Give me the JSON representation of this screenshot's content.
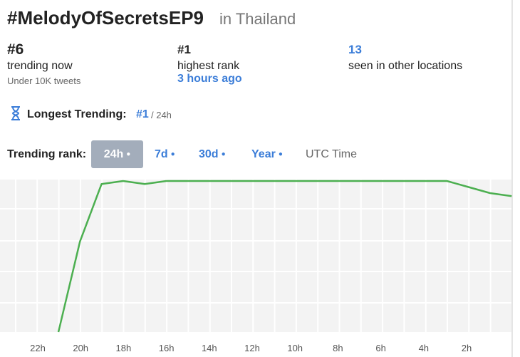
{
  "header": {
    "title": "#MelodyOfSecretsEP9",
    "location": "in Thailand"
  },
  "stats": [
    {
      "value": "#6",
      "label": "trending now",
      "note": "Under 10K tweets"
    },
    {
      "value": "#1",
      "label": "highest rank",
      "note": "3 hours ago"
    },
    {
      "value": "13",
      "label": "seen in other locations"
    }
  ],
  "longest": {
    "label": "Longest Trending:",
    "rank": "#1",
    "period": "/ 24h"
  },
  "tabs": {
    "label": "Trending rank:",
    "options": [
      "24h",
      "7d",
      "30d",
      "Year"
    ],
    "timezone": "UTC Time"
  },
  "chart_data": {
    "type": "line",
    "color": "#4caf50",
    "y_reversed": true,
    "ylim": [
      1,
      51
    ],
    "values": [
      51,
      21,
      2,
      1,
      2,
      1,
      1,
      1,
      1,
      1,
      1,
      1,
      1,
      1,
      1,
      1,
      1,
      1,
      1,
      3,
      5,
      6
    ],
    "xtick_labels": [
      "22h",
      "20h",
      "18h",
      "16h",
      "14h",
      "12h",
      "10h",
      "8h",
      "6h",
      "4h",
      "2h"
    ]
  }
}
